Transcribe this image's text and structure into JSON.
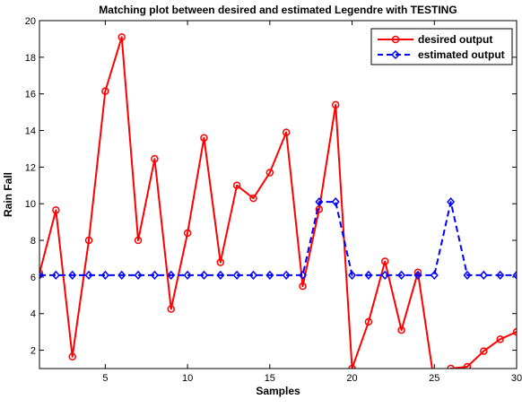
{
  "chart_data": {
    "type": "line",
    "title": "Matching plot between desired and estimated Legendre with TESTING",
    "xlabel": "Samples",
    "ylabel": "Rain Fall",
    "xlim": [
      1,
      30
    ],
    "ylim": [
      1,
      20
    ],
    "xticks": [
      5,
      10,
      15,
      20,
      25,
      30
    ],
    "yticks": [
      2,
      4,
      6,
      8,
      10,
      12,
      14,
      16,
      18,
      20
    ],
    "grid": false,
    "legend_position": "top-right",
    "x": [
      1,
      2,
      3,
      4,
      5,
      6,
      7,
      8,
      9,
      10,
      11,
      12,
      13,
      14,
      15,
      16,
      17,
      18,
      19,
      20,
      21,
      22,
      23,
      24,
      25,
      26,
      27,
      28,
      29,
      30
    ],
    "series": [
      {
        "name": "desired output",
        "color": "#ff0000",
        "line_style": "solid",
        "marker": "circle",
        "values": [
          6.2,
          9.65,
          1.65,
          8.0,
          16.15,
          19.1,
          8.0,
          12.45,
          4.25,
          8.4,
          13.6,
          6.8,
          11.0,
          10.3,
          11.7,
          13.9,
          5.5,
          9.7,
          15.4,
          1.0,
          3.55,
          6.85,
          3.1,
          6.25,
          0.2,
          1.0,
          1.1,
          1.95,
          2.6,
          3.0
        ]
      },
      {
        "name": "estimated output",
        "color": "#0000ff",
        "line_style": "dashed",
        "marker": "diamond",
        "values": [
          6.1,
          6.1,
          6.1,
          6.1,
          6.1,
          6.1,
          6.1,
          6.1,
          6.1,
          6.1,
          6.1,
          6.1,
          6.1,
          6.1,
          6.1,
          6.1,
          6.1,
          10.1,
          10.1,
          6.1,
          6.1,
          6.1,
          6.1,
          6.1,
          6.1,
          10.1,
          6.1,
          6.1,
          6.1,
          6.1
        ]
      }
    ]
  }
}
